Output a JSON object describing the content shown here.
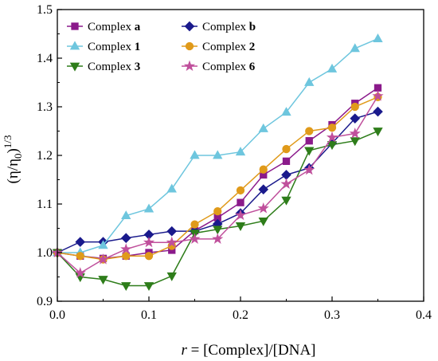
{
  "chart_data": {
    "type": "line",
    "xlabel": {
      "italic": "r",
      "rest": " = [Complex]/[DNA]"
    },
    "ylabel": {
      "base": "(η/η",
      "sub": "0",
      "close": ")",
      "sup": "1/3"
    },
    "xlim": [
      0.0,
      0.4
    ],
    "ylim": [
      0.9,
      1.5
    ],
    "xticks": [
      "0.0",
      "0.1",
      "0.2",
      "0.3",
      "0.4"
    ],
    "yticks": [
      "0.9",
      "1.0",
      "1.1",
      "1.2",
      "1.3",
      "1.4",
      "1.5"
    ],
    "grid": false,
    "legend_position": "top-left",
    "x": [
      0.0,
      0.025,
      0.05,
      0.075,
      0.1,
      0.125,
      0.15,
      0.175,
      0.2,
      0.225,
      0.25,
      0.275,
      0.3,
      0.325,
      0.35
    ],
    "series": [
      {
        "name": "Complex a",
        "label_prefix": "Complex ",
        "label_bold": "a",
        "color": "#8b1a8b",
        "marker": "square",
        "values": [
          1.0,
          0.993,
          0.988,
          0.993,
          1.0,
          1.005,
          1.045,
          1.072,
          1.103,
          1.16,
          1.188,
          1.23,
          1.263,
          1.307,
          1.339
        ]
      },
      {
        "name": "Complex b",
        "label_prefix": "Complex ",
        "label_bold": "b",
        "color": "#1a1a8c",
        "marker": "diamond",
        "values": [
          1.0,
          1.022,
          1.022,
          1.03,
          1.037,
          1.044,
          1.044,
          1.059,
          1.081,
          1.13,
          1.16,
          1.174,
          1.225,
          1.276,
          1.29
        ]
      },
      {
        "name": "Complex 1",
        "label_prefix": "Complex ",
        "label_bold": "1",
        "color": "#6ec6de",
        "marker": "triangle-up",
        "values": [
          1.0,
          1.0,
          1.015,
          1.076,
          1.09,
          1.131,
          1.2,
          1.2,
          1.207,
          1.255,
          1.289,
          1.35,
          1.378,
          1.42,
          1.44
        ]
      },
      {
        "name": "Complex 2",
        "label_prefix": "Complex ",
        "label_bold": "2",
        "color": "#e09a1a",
        "marker": "circle",
        "values": [
          1.0,
          0.993,
          0.986,
          0.993,
          0.993,
          1.014,
          1.058,
          1.085,
          1.128,
          1.171,
          1.213,
          1.25,
          1.257,
          1.3,
          1.32
        ]
      },
      {
        "name": "Complex 3",
        "label_prefix": "Complex ",
        "label_bold": "3",
        "color": "#2e7d1a",
        "marker": "triangle-down",
        "values": [
          1.0,
          0.95,
          0.945,
          0.932,
          0.932,
          0.952,
          1.04,
          1.048,
          1.055,
          1.065,
          1.108,
          1.21,
          1.222,
          1.23,
          1.25
        ]
      },
      {
        "name": "Complex 6",
        "label_prefix": "Complex ",
        "label_bold": "6",
        "color": "#c0509c",
        "marker": "star",
        "values": [
          1.0,
          0.958,
          0.986,
          1.007,
          1.021,
          1.021,
          1.028,
          1.028,
          1.077,
          1.091,
          1.141,
          1.17,
          1.237,
          1.245,
          1.322
        ]
      }
    ]
  }
}
